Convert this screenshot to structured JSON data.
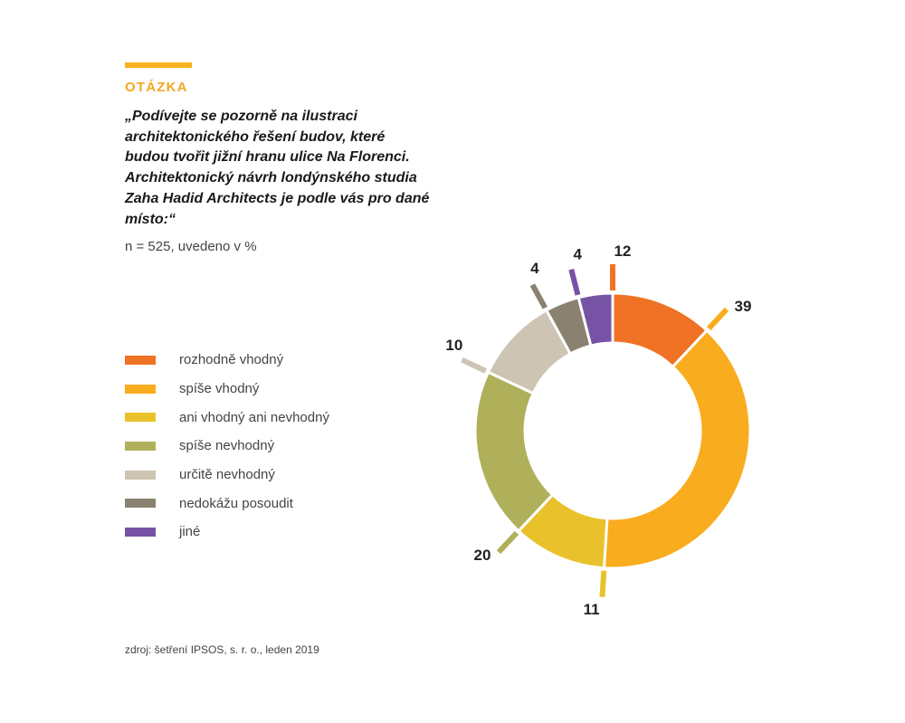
{
  "header": {
    "section_label": "OTÁZKA",
    "question_lines": [
      "„Podívejte se pozorně na ilustraci",
      "architektonického řešení budov, které",
      "budou tvořit jižní hranu ulice Na Florenci.",
      "Architektonický návrh londýnského studia",
      "Zaha Hadid Architects je podle vás pro dané",
      "místo:“"
    ],
    "sample_note": "n = 525, uvedeno v %"
  },
  "colors": {
    "accent": "#f8b21d",
    "label": "#f5a623"
  },
  "chart_data": {
    "type": "pie",
    "variant": "donut",
    "title": "",
    "unit": "%",
    "categories": [
      "rozhodně vhodný",
      "spíše vhodný",
      "ani vhodný ani nevhodný",
      "spíše nevhodný",
      "určitě nevhodný",
      "nedokážu posoudit",
      "jiné"
    ],
    "values": [
      12,
      39,
      11,
      20,
      10,
      4,
      4
    ],
    "colors": [
      "#f07224",
      "#f9ac1e",
      "#e9c22b",
      "#b0b05a",
      "#cdc4b3",
      "#8a8170",
      "#7653a4"
    ],
    "legend_position": "left"
  },
  "footer": {
    "source": "zdroj: šetření IPSOS, s. r. o., leden 2019"
  }
}
